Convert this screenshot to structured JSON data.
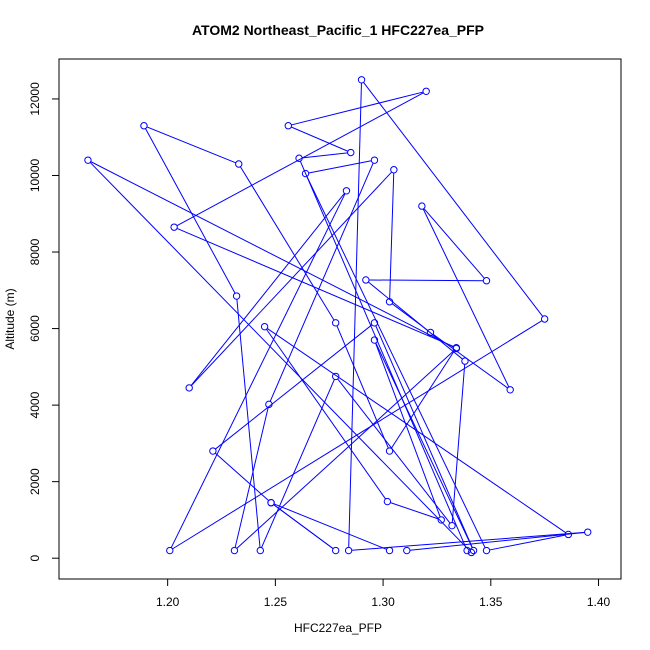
{
  "chart_data": {
    "type": "line",
    "title": "ATOM2 Northeast_Pacific_1 HFC227ea_PFP",
    "xlabel": "HFC227ea_PFP",
    "ylabel": "Altitude (m)",
    "xlim": [
      1.16,
      1.4
    ],
    "ylim": [
      0,
      12500
    ],
    "x_ticks": [
      1.2,
      1.25,
      1.3,
      1.35,
      1.4
    ],
    "x_tick_labels": [
      "1.20",
      "1.25",
      "1.30",
      "1.35",
      "1.40"
    ],
    "y_ticks": [
      0,
      2000,
      4000,
      6000,
      8000,
      10000,
      12000
    ],
    "y_tick_labels": [
      "0",
      "2000",
      "4000",
      "6000",
      "8000",
      "10000",
      "12000"
    ],
    "color": "#0000ff",
    "series": [
      {
        "x": [
          1.311,
          1.395,
          1.284,
          1.29,
          1.375,
          1.201,
          1.283,
          1.21,
          1.305,
          1.303,
          1.322,
          1.359,
          1.318,
          1.348,
          1.292,
          1.338,
          1.332,
          1.278,
          1.243,
          1.232,
          1.189,
          1.233,
          1.278,
          1.303,
          1.334,
          1.203,
          1.32,
          1.256,
          1.285,
          1.261,
          1.339,
          1.341,
          1.163,
          1.334,
          1.231,
          1.247,
          1.296,
          1.264,
          1.348,
          1.386,
          1.245,
          1.302,
          1.327,
          1.296,
          1.342,
          1.296,
          1.221,
          1.248,
          1.278,
          1.248,
          1.303
        ],
        "y": [
          200,
          680,
          200,
          12500,
          6250,
          200,
          9600,
          4450,
          10150,
          6700,
          5900,
          4400,
          9200,
          7250,
          7270,
          5150,
          850,
          4750,
          200,
          6850,
          11300,
          10300,
          6150,
          2800,
          5500,
          8650,
          12200,
          11300,
          10600,
          10450,
          200,
          150,
          10400,
          5480,
          200,
          4020,
          10400,
          10050,
          200,
          620,
          6050,
          1480,
          1000,
          5700,
          200,
          6150,
          2800,
          1450,
          200,
          1450,
          200
        ]
      }
    ]
  }
}
